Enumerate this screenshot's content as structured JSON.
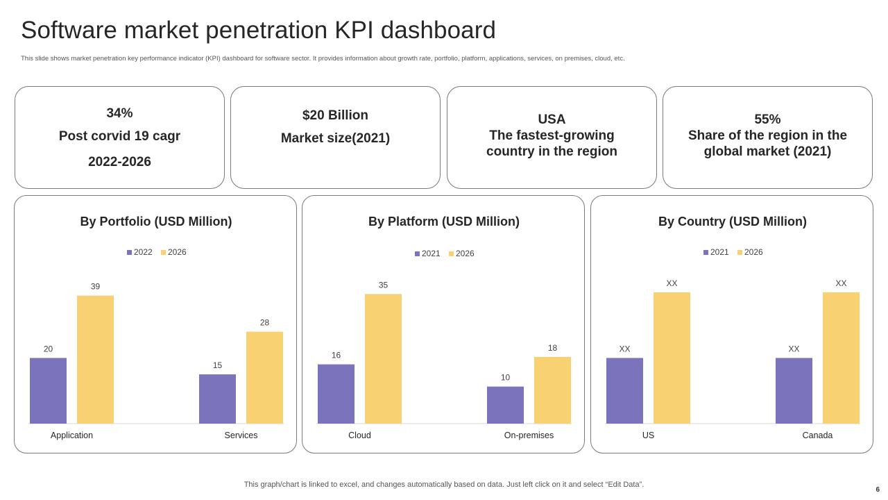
{
  "header": {
    "title": "Software market penetration KPI dashboard",
    "subtitle": "This slide shows market penetration key performance indicator (KPI) dashboard for software sector. It provides information about growth rate, portfolio, platform, applications, services, on premises, cloud, etc."
  },
  "kpis": [
    {
      "value": "34%",
      "line1": "Post corvid 19 cagr",
      "line2": "2022-2026"
    },
    {
      "value": "$20 Billion",
      "line1": "Market size(2021)"
    },
    {
      "value": "USA",
      "line1": "The fastest-growing",
      "line2": "country in the region"
    },
    {
      "value": "55%",
      "line1": "Share of the region  in the",
      "line2": "global market (2021)"
    }
  ],
  "colors": {
    "series1": "#7B73BB",
    "series2": "#F7D172",
    "axis": "#d9d9d9",
    "text": "#404040"
  },
  "chart_data": [
    {
      "type": "bar",
      "title": "By Portfolio (USD Million)",
      "categories": [
        "Application",
        "Services"
      ],
      "series": [
        {
          "name": "2022",
          "values": [
            20,
            15
          ],
          "labels": [
            "20",
            "15"
          ]
        },
        {
          "name": "2026",
          "values": [
            39,
            28
          ],
          "labels": [
            "39",
            "28"
          ]
        }
      ],
      "ylim": [
        0,
        44
      ]
    },
    {
      "type": "bar",
      "title": "By Platform (USD Million)",
      "categories": [
        "Cloud",
        "On-premises"
      ],
      "series": [
        {
          "name": "2021",
          "values": [
            16,
            10
          ],
          "labels": [
            "16",
            "10"
          ]
        },
        {
          "name": "2026",
          "values": [
            35,
            18
          ],
          "labels": [
            "35",
            "18"
          ]
        }
      ],
      "ylim": [
        0,
        39
      ]
    },
    {
      "type": "bar",
      "title": "By Country (USD Million)",
      "categories": [
        "US",
        "Canada"
      ],
      "series": [
        {
          "name": "2021",
          "values": [
            20,
            20
          ],
          "labels": [
            "XX",
            "XX"
          ]
        },
        {
          "name": "2026",
          "values": [
            40,
            40
          ],
          "labels": [
            "XX",
            "XX"
          ]
        }
      ],
      "ylim": [
        0,
        44
      ]
    }
  ],
  "footer": {
    "note": "This graph/chart is linked to excel,  and changes automatically based on data. Just left click on it and select “Edit Data”.",
    "page": "6"
  }
}
